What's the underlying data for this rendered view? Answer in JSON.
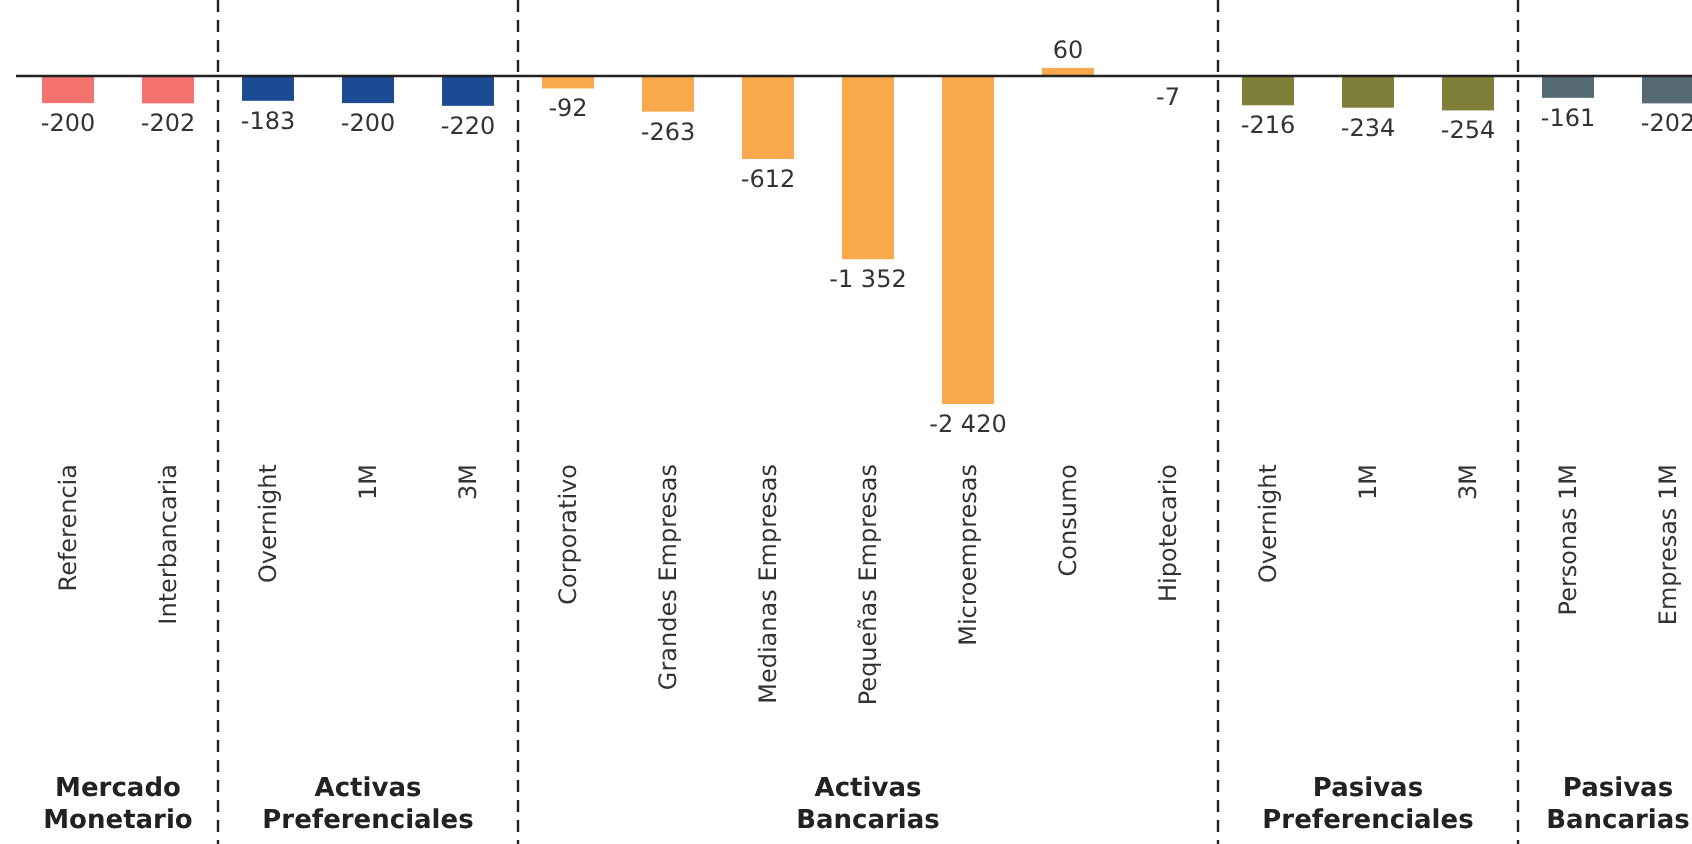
{
  "chart_data": {
    "type": "bar",
    "relative": false,
    "categories": [
      "Referencia",
      "Interbancaria",
      "Overnight",
      "1M",
      "3M",
      "Corporativo",
      "Grandes Empresas",
      "Medianas Empresas",
      "Pequeñas Empresas",
      "Microempresas",
      "Consumo",
      "Hipotecario",
      "Overnight",
      "1M",
      "3M",
      "Personas 1M",
      "Empresas 1M"
    ],
    "values": [
      -200,
      -202,
      -183,
      -200,
      -220,
      -92,
      -263,
      -612,
      -1352,
      -2420,
      60,
      -7,
      -216,
      -234,
      -254,
      -161,
      -202
    ],
    "value_labels": [
      "-200",
      "-202",
      "-183",
      "-200",
      "-220",
      "-92",
      "-263",
      "-612",
      "-1 352",
      "-2 420",
      "60",
      "-7",
      "-216",
      "-234",
      "-254",
      "-161",
      "-202"
    ],
    "colors": [
      "#f4736f",
      "#f4736f",
      "#1c4a93",
      "#1c4a93",
      "#1c4a93",
      "#f9a94b",
      "#f9a94b",
      "#f9a94b",
      "#f9a94b",
      "#f9a94b",
      "#f9a94b",
      "#f9a94b",
      "#7f7f3a",
      "#7f7f3a",
      "#7f7f3a",
      "#566a74",
      "#566a74"
    ],
    "annotations": [
      "Mercado\nMonetario",
      "Activas\nPreferenciales",
      "Activas\nBancarias",
      "Pasivas\nPreferenciales",
      "Pasivas\nBancarias"
    ]
  }
}
